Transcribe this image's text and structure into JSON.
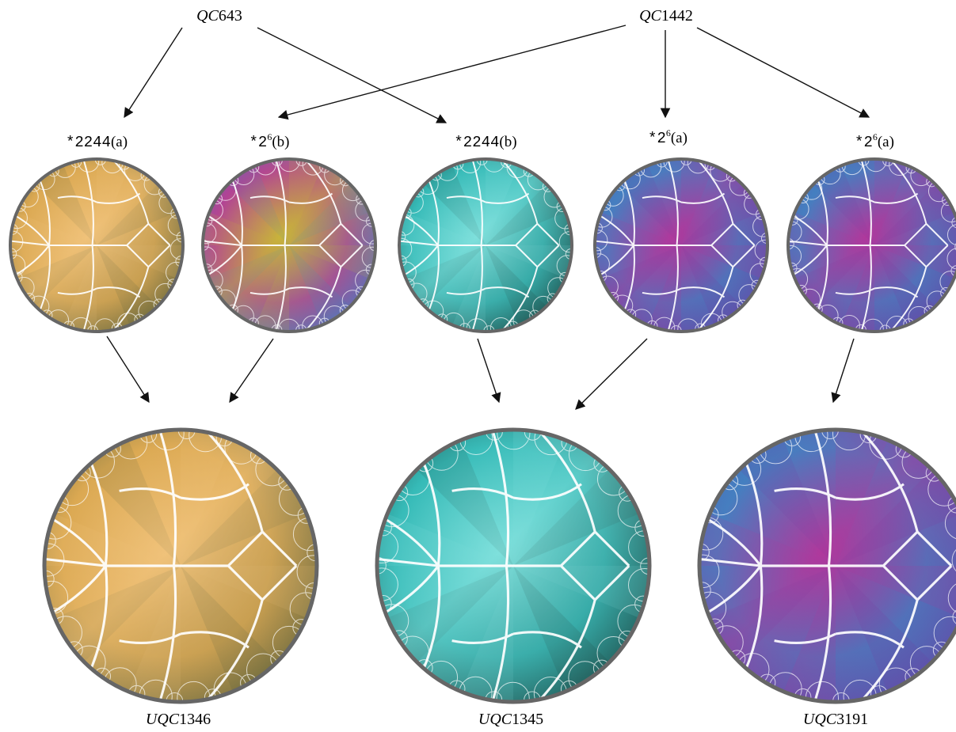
{
  "sources": [
    {
      "id": "qc643",
      "prefix": "QC",
      "num": "643"
    },
    {
      "id": "qc1442",
      "prefix": "QC",
      "num": "1442"
    }
  ],
  "middle": [
    {
      "id": "m1",
      "sym": "*2244",
      "sup": "",
      "suffix": "(a)",
      "palette": "gold"
    },
    {
      "id": "m2",
      "sym": "*2",
      "sup": "6",
      "suffix": "(b)",
      "palette": "rainbow"
    },
    {
      "id": "m3",
      "sym": "*2244",
      "sup": "",
      "suffix": "(b)",
      "palette": "teal"
    },
    {
      "id": "m4",
      "sym": "*2",
      "sup": "6",
      "suffix": "(a)",
      "palette": "purple"
    },
    {
      "id": "m5",
      "sym": "*2",
      "sup": "6",
      "suffix": "(a)",
      "palette": "purple"
    }
  ],
  "results": [
    {
      "id": "r1",
      "prefix": "UQC",
      "num": "1346",
      "palette": "gold"
    },
    {
      "id": "r2",
      "prefix": "UQC",
      "num": "1345",
      "palette": "teal"
    },
    {
      "id": "r3",
      "prefix": "UQC",
      "num": "3191",
      "palette": "purple"
    }
  ],
  "edges": [
    [
      "qc643",
      "m1"
    ],
    [
      "qc643",
      "m3"
    ],
    [
      "qc1442",
      "m2"
    ],
    [
      "qc1442",
      "m4"
    ],
    [
      "qc1442",
      "m5"
    ],
    [
      "m1",
      "r1"
    ],
    [
      "m2",
      "r1"
    ],
    [
      "m3",
      "r2"
    ],
    [
      "m4",
      "r2"
    ],
    [
      "m5",
      "r3"
    ]
  ],
  "colors": {
    "gold": [
      "#d9a64e",
      "#f0c27a",
      "#4f5a3a"
    ],
    "teal": [
      "#2fb7b4",
      "#7fe0dc",
      "#1c3b38"
    ],
    "purple": [
      "#3a86c4",
      "#b0389c",
      "#6a3fa2"
    ],
    "rainbow": [
      "#b0389c",
      "#c8b43a",
      "#3a86c4"
    ],
    "rim": "#666666",
    "arrow": "#111111"
  }
}
